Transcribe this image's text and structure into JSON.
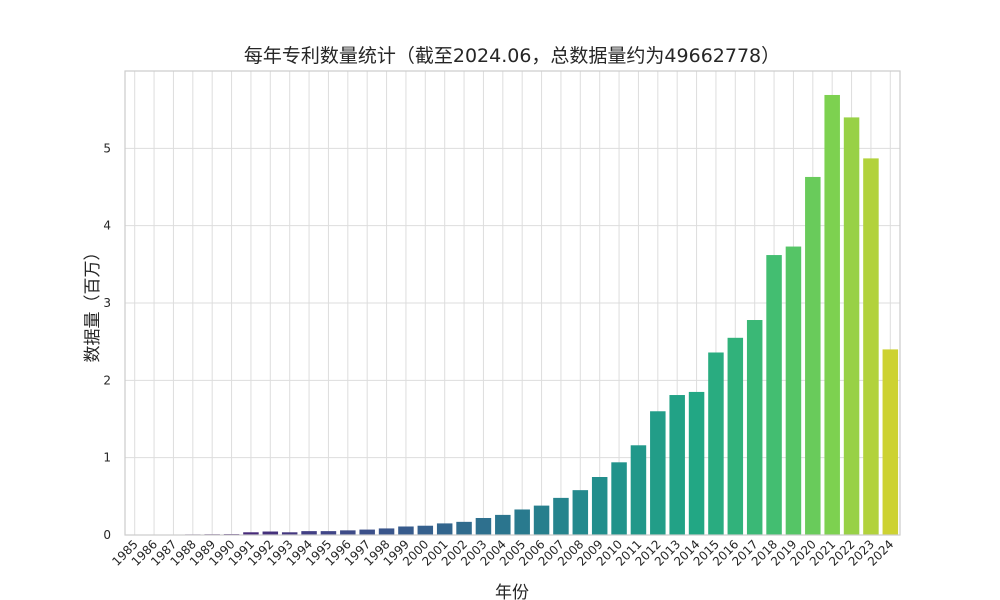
{
  "chart_data": {
    "type": "bar",
    "title": "每年专利数量统计（截至2024.06，总数据量约为49662778）",
    "xlabel": "年份",
    "ylabel": "数据量（百万）",
    "ylim": [
      0,
      6.0
    ],
    "yticks": [
      0,
      1,
      2,
      3,
      4,
      5
    ],
    "grid": true,
    "legend": "none",
    "palette": "viridis",
    "categories": [
      "1985",
      "1986",
      "1987",
      "1988",
      "1989",
      "1990",
      "1991",
      "1992",
      "1993",
      "1994",
      "1995",
      "1996",
      "1997",
      "1998",
      "1999",
      "2000",
      "2001",
      "2002",
      "2003",
      "2004",
      "2005",
      "2006",
      "2007",
      "2008",
      "2009",
      "2010",
      "2011",
      "2012",
      "2013",
      "2014",
      "2015",
      "2016",
      "2017",
      "2018",
      "2019",
      "2020",
      "2021",
      "2022",
      "2023",
      "2024"
    ],
    "values": [
      0.002,
      0.004,
      0.006,
      0.008,
      0.01,
      0.012,
      0.035,
      0.045,
      0.035,
      0.05,
      0.05,
      0.06,
      0.07,
      0.085,
      0.11,
      0.12,
      0.15,
      0.17,
      0.22,
      0.26,
      0.33,
      0.38,
      0.48,
      0.58,
      0.75,
      0.94,
      1.16,
      1.6,
      1.81,
      1.85,
      2.36,
      2.55,
      2.78,
      3.62,
      3.73,
      4.63,
      5.69,
      5.4,
      4.87,
      2.4
    ]
  }
}
